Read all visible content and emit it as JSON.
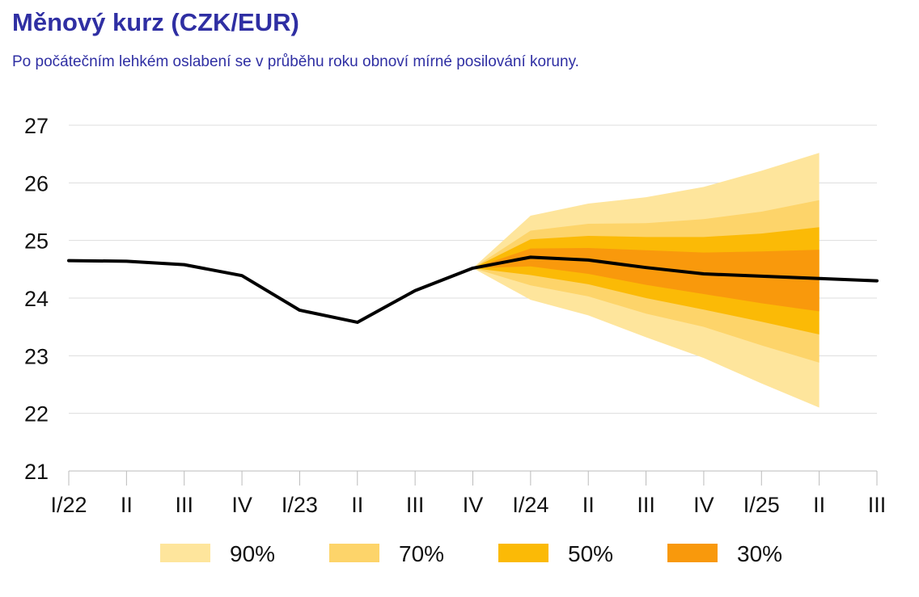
{
  "header": {
    "title": "Měnový kurz (CZK/EUR)",
    "subtitle": "Po počátečním lehkém oslabení se v průběhu roku obnoví mírné posilování koruny."
  },
  "chart_data": {
    "type": "line",
    "categories": [
      "I/22",
      "II",
      "III",
      "IV",
      "I/23",
      "II",
      "III",
      "IV",
      "I/24",
      "II",
      "III",
      "IV",
      "I/25",
      "II",
      "III"
    ],
    "series": [
      {
        "values": [
          24.65,
          24.64,
          24.58,
          24.39,
          23.79,
          23.58,
          24.13,
          24.52,
          24.71,
          24.66,
          24.53,
          24.42,
          24.38,
          24.34,
          24.3
        ]
      }
    ],
    "fan": {
      "start_index": 7,
      "bands": [
        {
          "name": "90%",
          "color": "#fee59c",
          "upper": [
            24.52,
            25.43,
            25.64,
            25.75,
            25.93,
            26.21,
            26.52
          ],
          "lower": [
            24.52,
            23.97,
            23.7,
            23.32,
            22.96,
            22.52,
            22.1
          ]
        },
        {
          "name": "70%",
          "color": "#fdd46a",
          "upper": [
            24.52,
            25.17,
            25.29,
            25.3,
            25.37,
            25.5,
            25.7
          ],
          "lower": [
            24.52,
            24.22,
            24.03,
            23.73,
            23.5,
            23.18,
            22.88
          ]
        },
        {
          "name": "50%",
          "color": "#fbba06",
          "upper": [
            24.52,
            25.02,
            25.08,
            25.06,
            25.06,
            25.12,
            25.23
          ],
          "lower": [
            24.52,
            24.4,
            24.24,
            24.0,
            23.8,
            23.59,
            23.37
          ]
        },
        {
          "name": "30%",
          "color": "#f9990c",
          "upper": [
            24.52,
            24.86,
            24.87,
            24.83,
            24.79,
            24.81,
            24.84
          ],
          "lower": [
            24.52,
            24.55,
            24.42,
            24.23,
            24.07,
            23.91,
            23.77
          ]
        }
      ]
    },
    "y_ticks": [
      "27",
      "26",
      "25",
      "24",
      "23",
      "22",
      "21"
    ],
    "ylim": [
      21,
      27
    ],
    "grid": true,
    "legend": {
      "placement": "bottom",
      "items": [
        {
          "label": "90%",
          "color": "#fee59c"
        },
        {
          "label": "70%",
          "color": "#fdd46a"
        },
        {
          "label": "50%",
          "color": "#fbba06"
        },
        {
          "label": "30%",
          "color": "#f9990c"
        }
      ]
    },
    "line_color": "#000000",
    "grid_color": "#dddddd"
  }
}
